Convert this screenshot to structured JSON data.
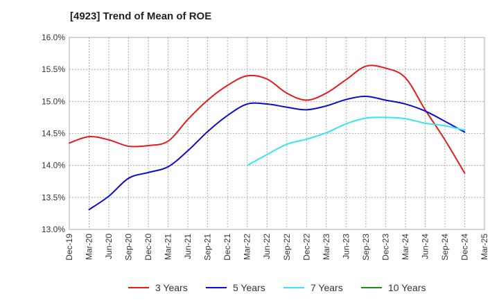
{
  "chart_data": {
    "type": "line",
    "title": "[4923]  Trend of Mean of ROE",
    "xlabel": "",
    "ylabel": "",
    "x": [
      "Dec-19",
      "Mar-20",
      "Jun-20",
      "Sep-20",
      "Dec-20",
      "Mar-21",
      "Jun-21",
      "Sep-21",
      "Dec-21",
      "Mar-22",
      "Jun-22",
      "Sep-22",
      "Dec-22",
      "Mar-23",
      "Jun-23",
      "Sep-23",
      "Dec-23",
      "Mar-24",
      "Jun-24",
      "Sep-24",
      "Dec-24",
      "Mar-25"
    ],
    "ylim": [
      13.0,
      16.0
    ],
    "yticks": [
      "13.0%",
      "13.5%",
      "14.0%",
      "14.5%",
      "15.0%",
      "15.5%",
      "16.0%"
    ],
    "grid": true,
    "legend_position": "bottom",
    "series": [
      {
        "name": "3 Years",
        "color": "#e41a1c",
        "values": [
          14.35,
          14.45,
          14.4,
          14.3,
          14.31,
          14.38,
          14.72,
          15.02,
          15.25,
          15.4,
          15.35,
          15.13,
          15.02,
          15.13,
          15.34,
          15.55,
          15.52,
          15.37,
          14.87,
          14.4,
          13.88,
          null
        ]
      },
      {
        "name": "5 Years",
        "color": "#0a0ad4",
        "values": [
          null,
          13.31,
          13.52,
          13.8,
          13.89,
          13.98,
          14.23,
          14.53,
          14.78,
          14.96,
          14.96,
          14.91,
          14.87,
          14.93,
          15.03,
          15.08,
          15.02,
          14.96,
          14.85,
          14.69,
          14.52,
          null
        ]
      },
      {
        "name": "7 Years",
        "color": "#33e6f0",
        "values": [
          null,
          null,
          null,
          null,
          null,
          null,
          null,
          null,
          null,
          14.0,
          14.17,
          14.33,
          14.41,
          14.51,
          14.65,
          14.74,
          14.75,
          14.73,
          14.66,
          14.62,
          14.55,
          null
        ]
      },
      {
        "name": "10 Years",
        "color": "#1a8a1a",
        "values": [
          null,
          null,
          null,
          null,
          null,
          null,
          null,
          null,
          null,
          null,
          null,
          null,
          null,
          null,
          null,
          null,
          null,
          null,
          null,
          null,
          null,
          null
        ]
      }
    ]
  }
}
